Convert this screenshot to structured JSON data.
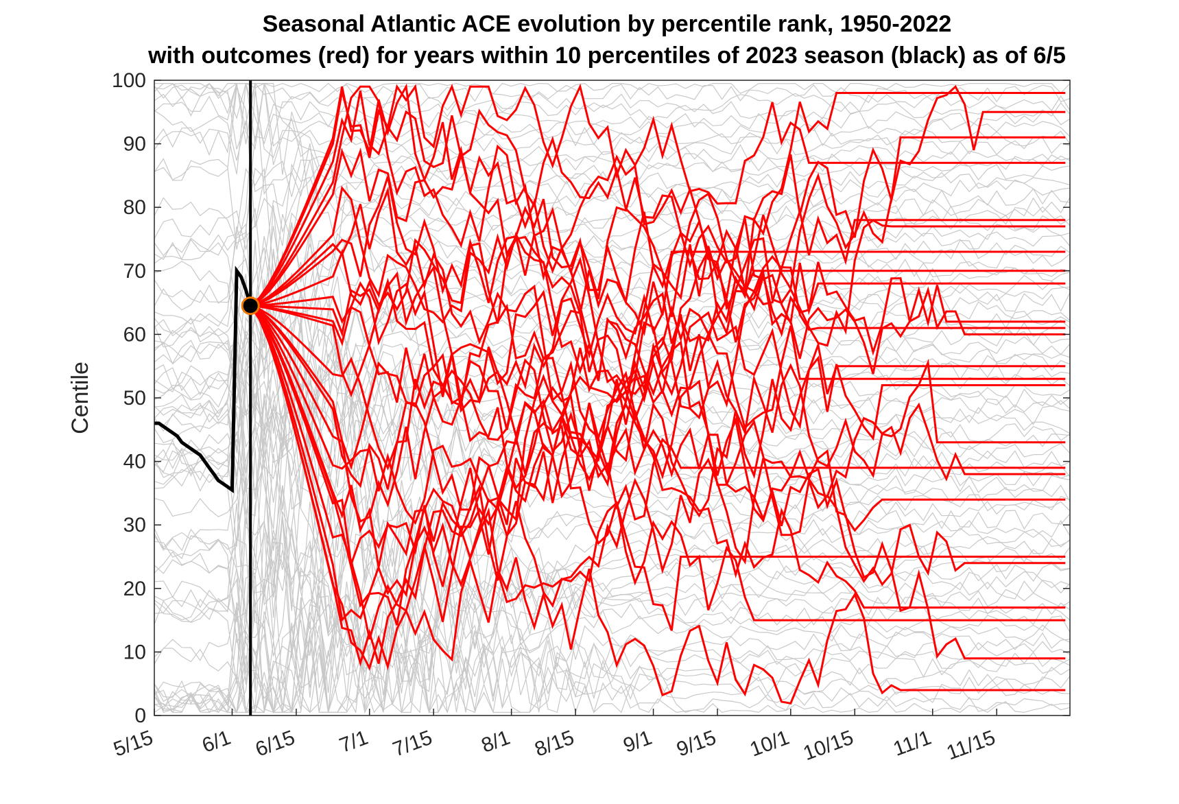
{
  "chart_data": {
    "type": "line",
    "title": "Seasonal Atlantic ACE evolution by percentile rank, 1950-2022",
    "subtitle": "with outcomes (red) for years within 10 percentiles of 2023 season (black) as of 6/5",
    "xlabel": "",
    "ylabel": "Centile",
    "xlim_days_since_may15": [
      0,
      200
    ],
    "ylim": [
      0,
      100
    ],
    "yticks": [
      0,
      10,
      20,
      30,
      40,
      50,
      60,
      70,
      80,
      90,
      100
    ],
    "xtick_days": [
      0,
      17,
      31,
      47,
      61,
      78,
      92,
      109,
      123,
      139,
      153,
      170,
      184
    ],
    "xtick_labels": [
      "5/15",
      "6/1",
      "6/15",
      "7/1",
      "7/15",
      "8/1",
      "8/15",
      "9/1",
      "9/15",
      "10/1",
      "10/15",
      "11/1",
      "11/15"
    ],
    "current_date_label": "6/5",
    "current_day": 21,
    "current_centile": 64.5,
    "season_2023": {
      "name": "2023 season",
      "color": "#000000",
      "x": [
        0,
        1,
        2,
        3,
        4,
        5,
        6,
        7,
        8,
        9,
        10,
        11,
        12,
        13,
        14,
        15,
        16,
        17,
        18,
        19,
        20,
        21
      ],
      "y": [
        46,
        46,
        45.5,
        45,
        44.5,
        44,
        43,
        42.5,
        42,
        41.5,
        41,
        40,
        39,
        38,
        37,
        36.5,
        36,
        35.5,
        70,
        69,
        67,
        64.5
      ]
    },
    "analog_series_color": "#ff0000",
    "background_series_color": "#c8c8c8",
    "analog_years_final_centiles": [
      98,
      95,
      91,
      87,
      78,
      77,
      73,
      70,
      68,
      62,
      61,
      60,
      55,
      53,
      52,
      43,
      39,
      38,
      34,
      25,
      24,
      17,
      15,
      9,
      4
    ]
  }
}
